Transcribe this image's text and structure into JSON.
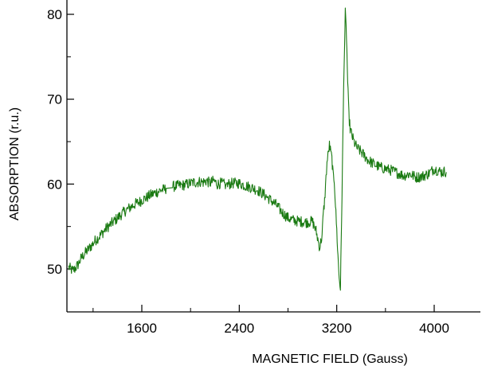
{
  "chart_data": {
    "type": "line",
    "title": "",
    "xlabel": "MAGNETIC FIELD (Gauss)",
    "ylabel": "ABSORPTION (r.u.)",
    "xlim": [
      800,
      4400
    ],
    "ylim": [
      46,
      81
    ],
    "x_ticks": [
      1600,
      2400,
      3200,
      4000
    ],
    "y_ticks": [
      50,
      60,
      70,
      80
    ],
    "grid": false,
    "legend": "none",
    "series": [
      {
        "color": "#1a7a12",
        "x": [
          1000,
          1030,
          1050,
          1080,
          1100,
          1130,
          1160,
          1190,
          1220,
          1250,
          1280,
          1310,
          1340,
          1370,
          1400,
          1430,
          1460,
          1490,
          1520,
          1550,
          1580,
          1610,
          1640,
          1670,
          1700,
          1730,
          1760,
          1790,
          1800,
          1850,
          1900,
          1950,
          2000,
          2020,
          2050,
          2080,
          2100,
          2130,
          2160,
          2190,
          2220,
          2250,
          2270,
          2290,
          2300,
          2310,
          2350,
          2400,
          2450,
          2500,
          2550,
          2600,
          2650,
          2700,
          2750,
          2800,
          2850,
          2900,
          2950,
          3000,
          3030,
          3060,
          3080,
          3090,
          3100,
          3120,
          3140,
          3160,
          3170,
          3180,
          3190,
          3200,
          3210,
          3220,
          3230,
          3240,
          3250,
          3260,
          3270,
          3280,
          3290,
          3300,
          3310,
          3320,
          3330,
          3340,
          3350,
          3370,
          3400,
          3430,
          3460,
          3500,
          3550,
          3600,
          3650,
          3700,
          3750,
          3800,
          3850,
          3900,
          3950,
          4000,
          4030,
          4060,
          4090,
          4100
        ],
        "y": [
          50.2,
          49.8,
          50.0,
          50.6,
          51.2,
          51.8,
          52.3,
          52.8,
          53.4,
          53.8,
          54.3,
          54.8,
          55.2,
          55.6,
          56.0,
          56.4,
          56.8,
          57.1,
          57.4,
          57.7,
          57.9,
          58.2,
          58.4,
          58.7,
          58.9,
          59.1,
          59.3,
          59.4,
          59.5,
          59.7,
          59.8,
          59.9,
          60.1,
          60.2,
          60.2,
          60.3,
          60.2,
          60.4,
          60.1,
          60.4,
          60.0,
          60.1,
          60.0,
          59.9,
          59.8,
          60.0,
          60.1,
          60.1,
          59.8,
          59.6,
          59.3,
          58.8,
          58.2,
          57.6,
          56.7,
          56.0,
          55.7,
          55.6,
          55.5,
          55.6,
          54.5,
          52.5,
          54.0,
          56.5,
          58.0,
          62.5,
          64.6,
          63.0,
          61.0,
          60.5,
          57.5,
          54.5,
          51.5,
          49.0,
          47.8,
          56.0,
          65.0,
          74.0,
          80.1,
          77.5,
          72.0,
          68.0,
          66.5,
          66.0,
          65.5,
          65.0,
          64.7,
          64.2,
          63.8,
          63.3,
          62.8,
          62.4,
          62.0,
          61.8,
          61.6,
          61.3,
          61.0,
          61.2,
          60.8,
          60.9,
          61.2,
          61.8,
          61.6,
          61.4,
          61.5,
          61.4
        ]
      }
    ]
  }
}
